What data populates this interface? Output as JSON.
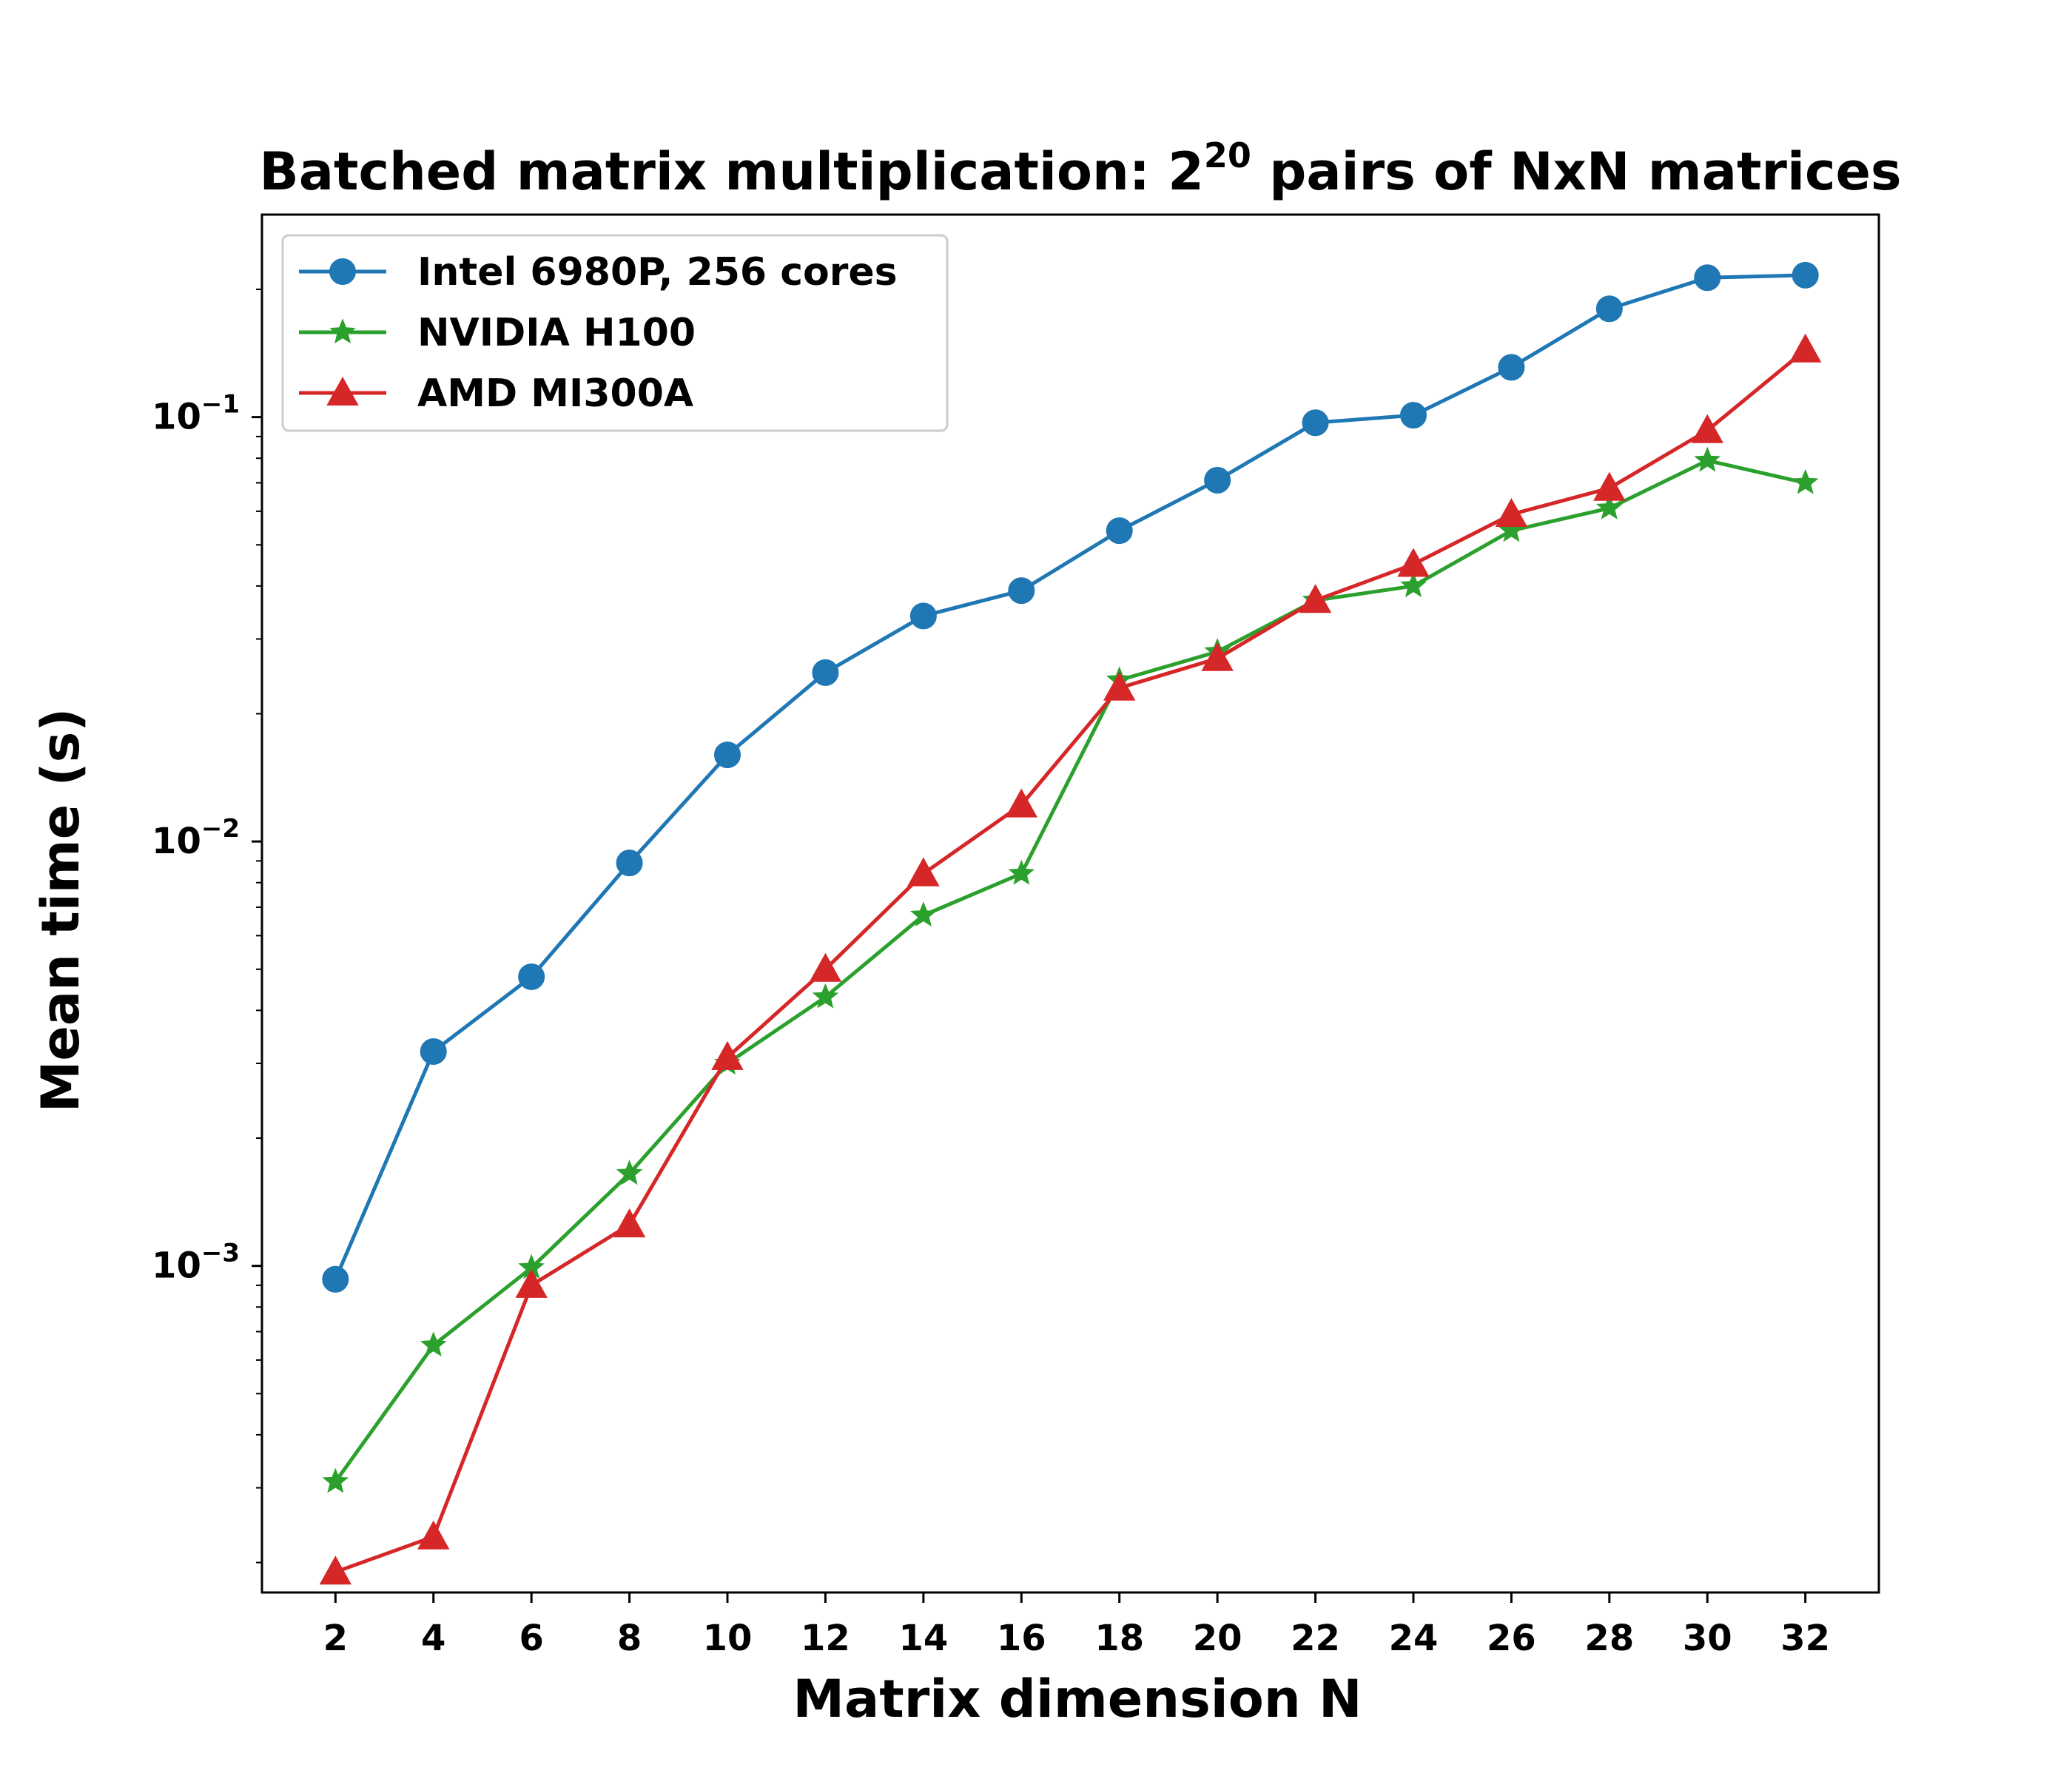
{
  "chart_data": {
    "type": "line",
    "title": "Batched matrix multiplication: 2",
    "title_exponent": "20",
    "title_suffix": " pairs of NxN matrices",
    "xlabel": "Matrix dimension N",
    "ylabel": "Mean time (s)",
    "yscale": "log",
    "xlim": [
      0.5,
      33.5
    ],
    "ylim": [
      0.00017,
      0.3
    ],
    "x": [
      2,
      4,
      6,
      8,
      10,
      12,
      14,
      16,
      18,
      20,
      22,
      24,
      26,
      28,
      30,
      32
    ],
    "xtick_labels": [
      "2",
      "4",
      "6",
      "8",
      "10",
      "12",
      "14",
      "16",
      "18",
      "20",
      "22",
      "24",
      "26",
      "28",
      "30",
      "32"
    ],
    "yticks": [
      {
        "value": 0.001,
        "base": "10",
        "exp": "−3"
      },
      {
        "value": 0.01,
        "base": "10",
        "exp": "−2"
      },
      {
        "value": 0.1,
        "base": "10",
        "exp": "−1"
      }
    ],
    "legend_position": "upper-left",
    "series": [
      {
        "name": "Intel 6980P, 256 cores",
        "color": "#1f77b4",
        "marker": "circle",
        "values": [
          0.00093,
          0.0032,
          0.0048,
          0.0089,
          0.016,
          0.025,
          0.034,
          0.039,
          0.054,
          0.071,
          0.097,
          0.101,
          0.131,
          0.18,
          0.213,
          0.216
        ]
      },
      {
        "name": "NVIDIA H100",
        "color": "#2ca02c",
        "marker": "star",
        "values": [
          0.00031,
          0.00065,
          0.00099,
          0.00165,
          0.003,
          0.0043,
          0.0067,
          0.0084,
          0.024,
          0.028,
          0.037,
          0.04,
          0.054,
          0.061,
          0.079,
          0.07
        ]
      },
      {
        "name": "AMD MI300A",
        "color": "#d62728",
        "marker": "triangle",
        "values": [
          0.00019,
          0.00023,
          0.0009,
          0.00125,
          0.0031,
          0.005,
          0.0084,
          0.0122,
          0.023,
          0.027,
          0.037,
          0.045,
          0.059,
          0.068,
          0.093,
          0.144
        ]
      }
    ]
  }
}
